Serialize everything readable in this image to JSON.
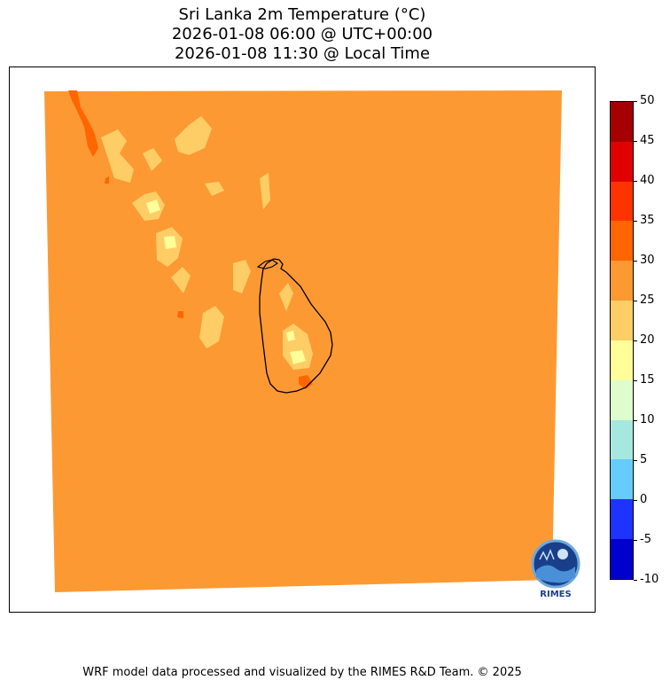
{
  "title": {
    "line1": "Sri Lanka 2m Temperature (°C)",
    "line2": "2026-01-08 06:00 @ UTC+00:00",
    "line3": "2026-01-08 11:30 @ Local Time"
  },
  "colorbar": {
    "levels": [
      "50",
      "45",
      "40",
      "35",
      "30",
      "25",
      "20",
      "15",
      "10",
      "5",
      "0",
      "-5",
      "-10"
    ],
    "colors": [
      "#a50000",
      "#e00000",
      "#ff3300",
      "#ff6600",
      "#fd9933",
      "#fecd66",
      "#fffe99",
      "#ddfecc",
      "#a6e8df",
      "#66ccfe",
      "#1f33ff",
      "#0000cc"
    ]
  },
  "map": {
    "background_color": "#fd9933",
    "coastline_color": "#000000",
    "region": "Sri Lanka"
  },
  "logo": {
    "icon": "rimes-logo-icon",
    "label": "RIMES"
  },
  "footer": "WRF model data processed and visualized by the RIMES R&D Team. © 2025"
}
